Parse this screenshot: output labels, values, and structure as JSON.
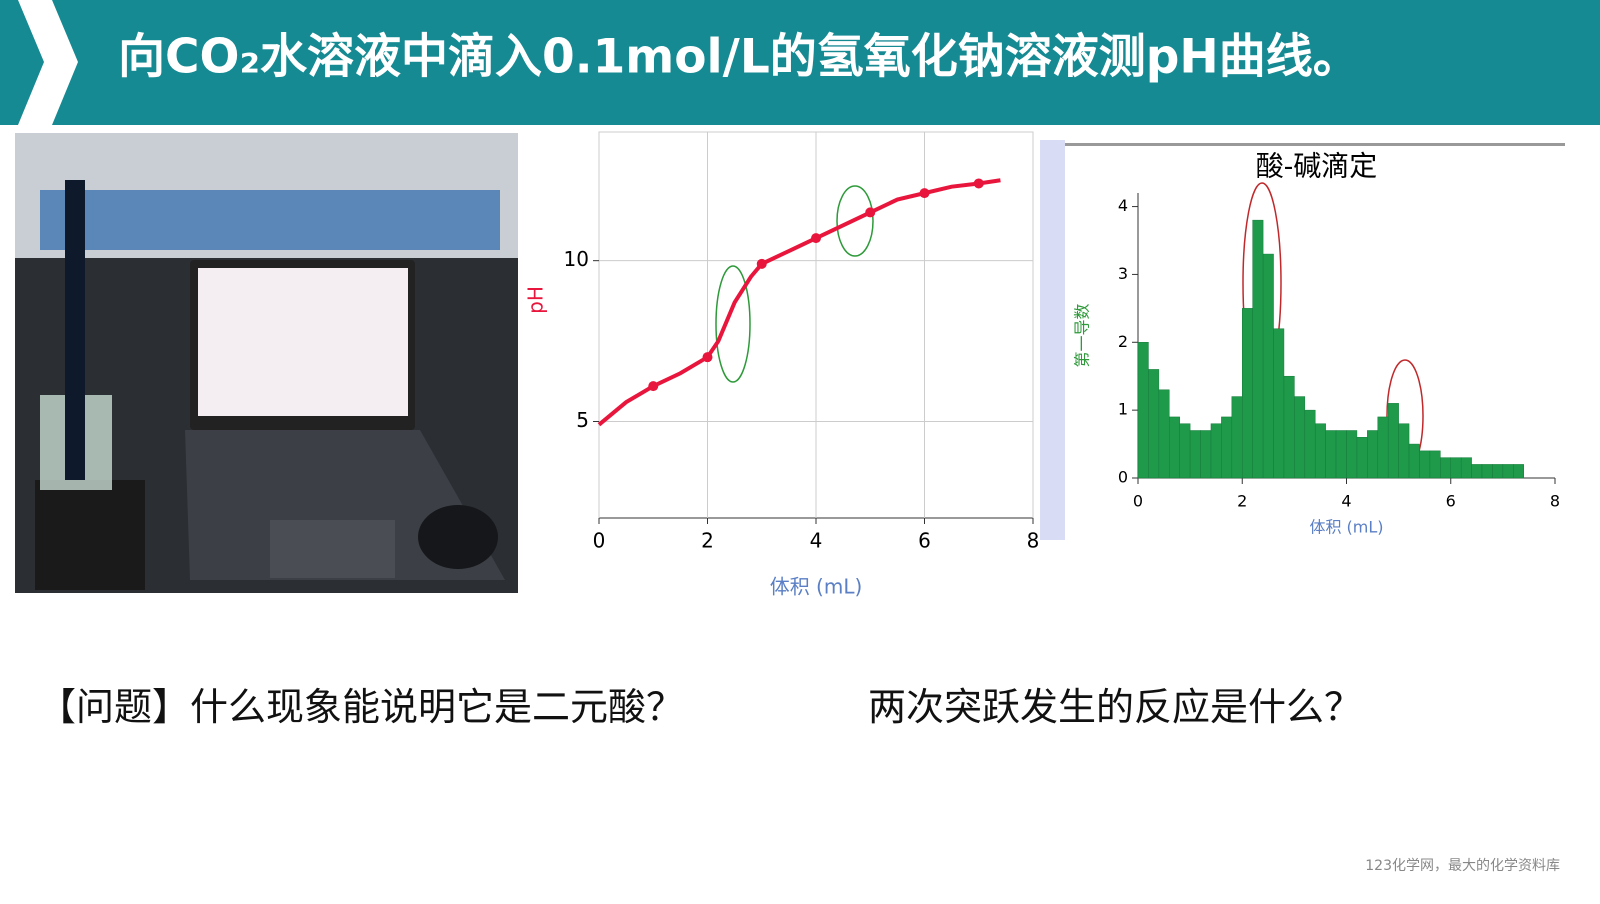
{
  "title": "向CO₂水溶液中滴入0.1mol/L的氢氧化钠溶液测pH曲线。",
  "chart_data": [
    {
      "type": "line",
      "xlabel": "体积 (mL)",
      "ylabel": "pH",
      "color": "#e8163c",
      "x": [
        0,
        0.5,
        1,
        1.5,
        2,
        2.2,
        2.5,
        2.8,
        3,
        3.5,
        4,
        4.5,
        5,
        5.5,
        6,
        6.5,
        7,
        7.4
      ],
      "values": [
        4.9,
        5.6,
        6.1,
        6.5,
        7.0,
        7.5,
        8.7,
        9.5,
        9.9,
        10.3,
        10.7,
        11.1,
        11.5,
        11.9,
        12.1,
        12.3,
        12.4,
        12.5
      ],
      "xlim": [
        0,
        8
      ],
      "xticks": [
        0,
        2,
        4,
        6,
        8
      ],
      "ylim": [
        2,
        14
      ],
      "yticks": [
        5,
        10
      ],
      "grid": true
    },
    {
      "type": "histogram",
      "title": "酸-碱滴定",
      "xlabel": "体积 (mL)",
      "ylabel": "第一导数",
      "color": "#1e9a4a",
      "bins": [
        0,
        0.2,
        0.4,
        0.6,
        0.8,
        1.0,
        1.2,
        1.4,
        1.6,
        1.8,
        2.0,
        2.2,
        2.4,
        2.6,
        2.8,
        3.0,
        3.2,
        3.4,
        3.6,
        3.8,
        4.0,
        4.2,
        4.4,
        4.6,
        4.8,
        5.0,
        5.2,
        5.4,
        5.6,
        5.8,
        6.0,
        6.2,
        6.4,
        6.6,
        6.8,
        7.0,
        7.2,
        7.4
      ],
      "values": [
        2.0,
        1.6,
        1.3,
        0.9,
        0.8,
        0.7,
        0.7,
        0.8,
        0.9,
        1.2,
        2.5,
        3.8,
        3.3,
        2.2,
        1.5,
        1.2,
        1.0,
        0.8,
        0.7,
        0.7,
        0.7,
        0.6,
        0.7,
        0.9,
        1.1,
        0.8,
        0.5,
        0.4,
        0.4,
        0.3,
        0.3,
        0.3,
        0.2,
        0.2,
        0.2,
        0.2,
        0.2
      ],
      "xlim": [
        0,
        8
      ],
      "xticks": [
        0,
        2,
        4,
        6,
        8
      ],
      "ylim": [
        0,
        4.2
      ],
      "yticks": [
        0,
        1,
        2,
        3,
        4
      ],
      "grid": false
    }
  ],
  "question": {
    "left": "【问题】什么现象能说明它是二元酸？",
    "right": "两次突跃发生的反应是什么？"
  },
  "footer": "123化学网，最大的化学资料库"
}
